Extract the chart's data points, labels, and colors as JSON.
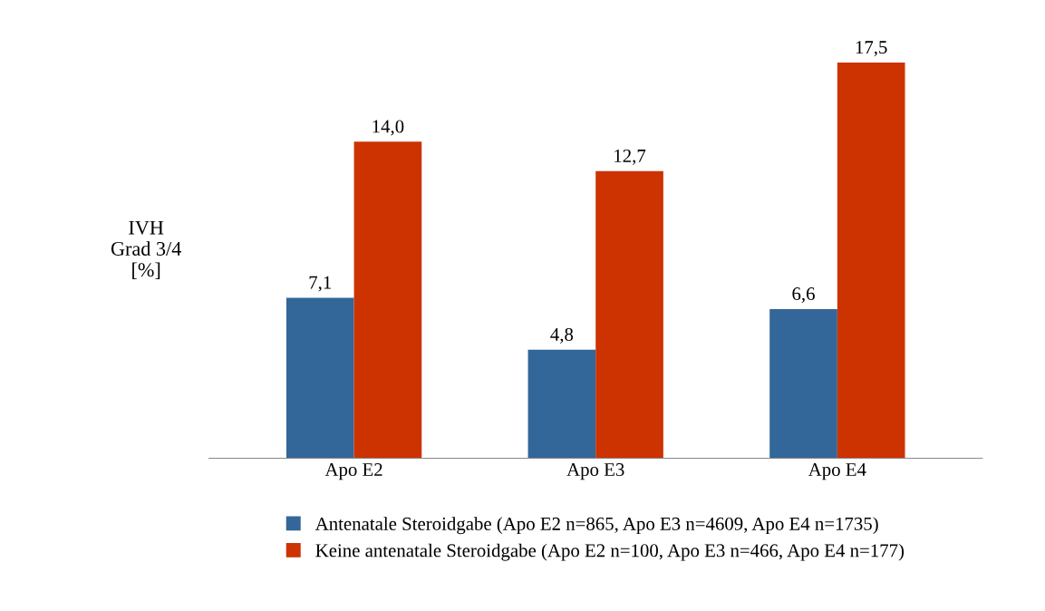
{
  "chart_data": {
    "type": "bar",
    "ylabel": "IVH\nGrad 3/4\n[%]",
    "categories": [
      "Apo E2",
      "Apo E3",
      "Apo E4"
    ],
    "series": [
      {
        "name": "Antenatale Steroidgabe (Apo E2 n=865, Apo E3 n=4609, Apo E4 n=1735)",
        "color": "#336699",
        "values": [
          7.1,
          4.8,
          6.6
        ],
        "value_labels": [
          "7,1",
          "4,8",
          "6,6"
        ]
      },
      {
        "name": "Keine antenatale Steroidgabe (Apo E2 n=100, Apo E3 n=466, Apo E4 n=177)",
        "color": "#cc3300",
        "values": [
          14.0,
          12.7,
          17.5
        ],
        "value_labels": [
          "14,0",
          "12,7",
          "17,5"
        ]
      }
    ],
    "legend": "bottom"
  }
}
